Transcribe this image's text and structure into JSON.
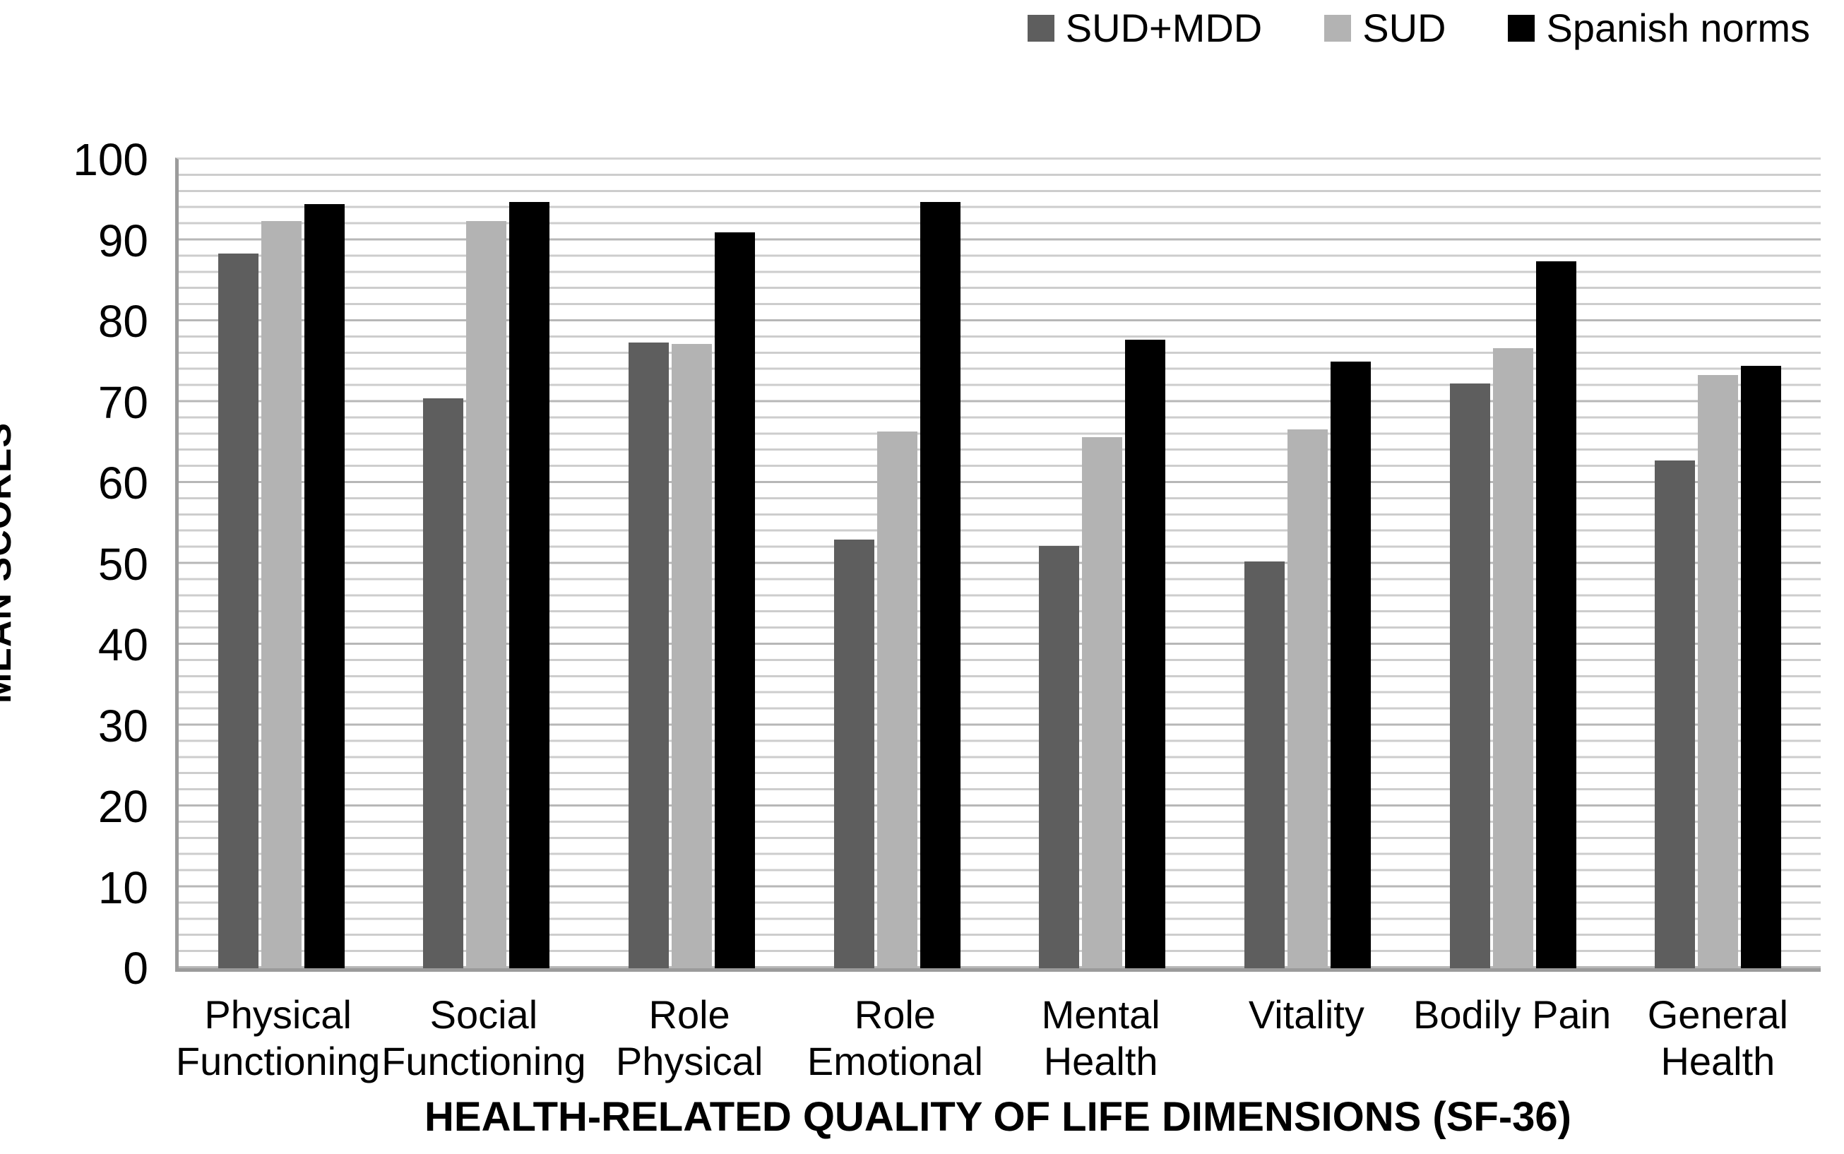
{
  "chart_data": {
    "type": "bar",
    "xlabel": "HEALTH-RELATED QUALITY OF LIFE DIMENSIONS (SF-36)",
    "ylabel": "MEAN SCORES",
    "ylim": [
      0,
      100
    ],
    "y_ticks": [
      0,
      10,
      20,
      30,
      40,
      50,
      60,
      70,
      80,
      90,
      100
    ],
    "minor_gridline_step": 2,
    "grid": "horizontal minor + major gridlines, gray",
    "legend_position": "top-right",
    "categories": [
      "Physical\nFunctioning",
      "Social\nFunctioning",
      "Role Physical",
      "Role\nEmotional",
      "Mental\nHealth",
      "Vitality",
      "Bodily Pain",
      "General\nHealth"
    ],
    "series": [
      {
        "name": "SUD+MDD",
        "color": "#5e5e5e",
        "values": [
          88.4,
          70.5,
          77.4,
          53.0,
          52.2,
          50.3,
          72.3,
          62.8
        ]
      },
      {
        "name": "SUD",
        "color": "#b3b3b3",
        "values": [
          92.4,
          92.4,
          77.2,
          66.4,
          65.7,
          66.6,
          76.7,
          73.4
        ]
      },
      {
        "name": "Spanish norms",
        "color": "#000000",
        "values": [
          94.5,
          94.8,
          91.0,
          94.8,
          77.7,
          75.0,
          87.4,
          74.5
        ]
      }
    ],
    "axis_color": "#9b9b9b",
    "gridline_minor_color": "#cdcdcd",
    "gridline_major_color": "#b7b7b7"
  }
}
